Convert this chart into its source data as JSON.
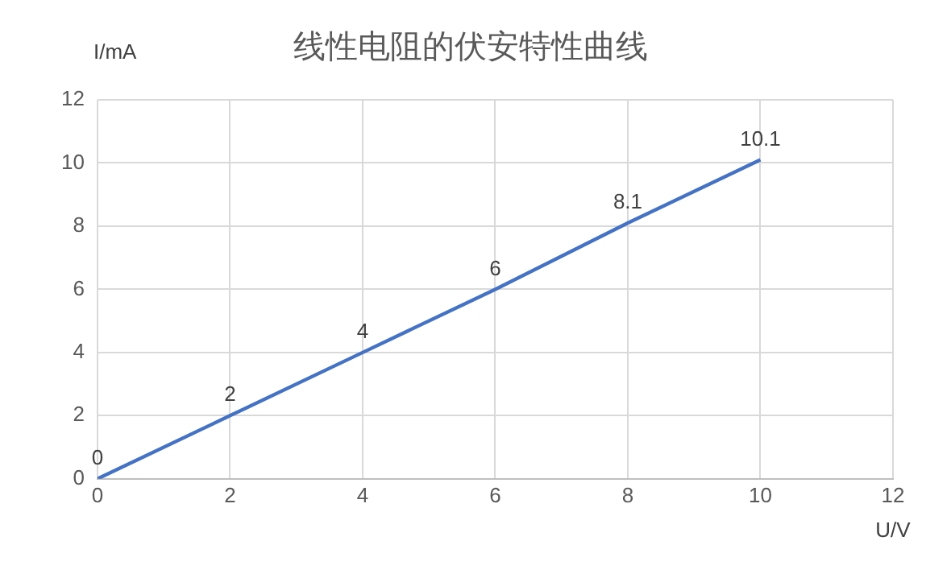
{
  "chart_data": {
    "type": "line",
    "title": "线性电阻的伏安特性曲线",
    "xlabel": "U/V",
    "ylabel": "I/mA",
    "x": [
      0,
      2,
      4,
      6,
      8,
      10
    ],
    "series": [
      {
        "color": "#4472c4",
        "values": [
          0,
          2,
          4,
          6,
          8.1,
          10.1
        ]
      }
    ],
    "xlim": [
      0,
      12
    ],
    "xticks": [
      0,
      2,
      4,
      6,
      8,
      10,
      12
    ],
    "ylim": [
      0,
      12
    ],
    "yticks": [
      0,
      2,
      4,
      6,
      8,
      10,
      12
    ],
    "grid": true,
    "legend": false,
    "marker": "none",
    "line_style": "solid",
    "data_labels": true
  }
}
